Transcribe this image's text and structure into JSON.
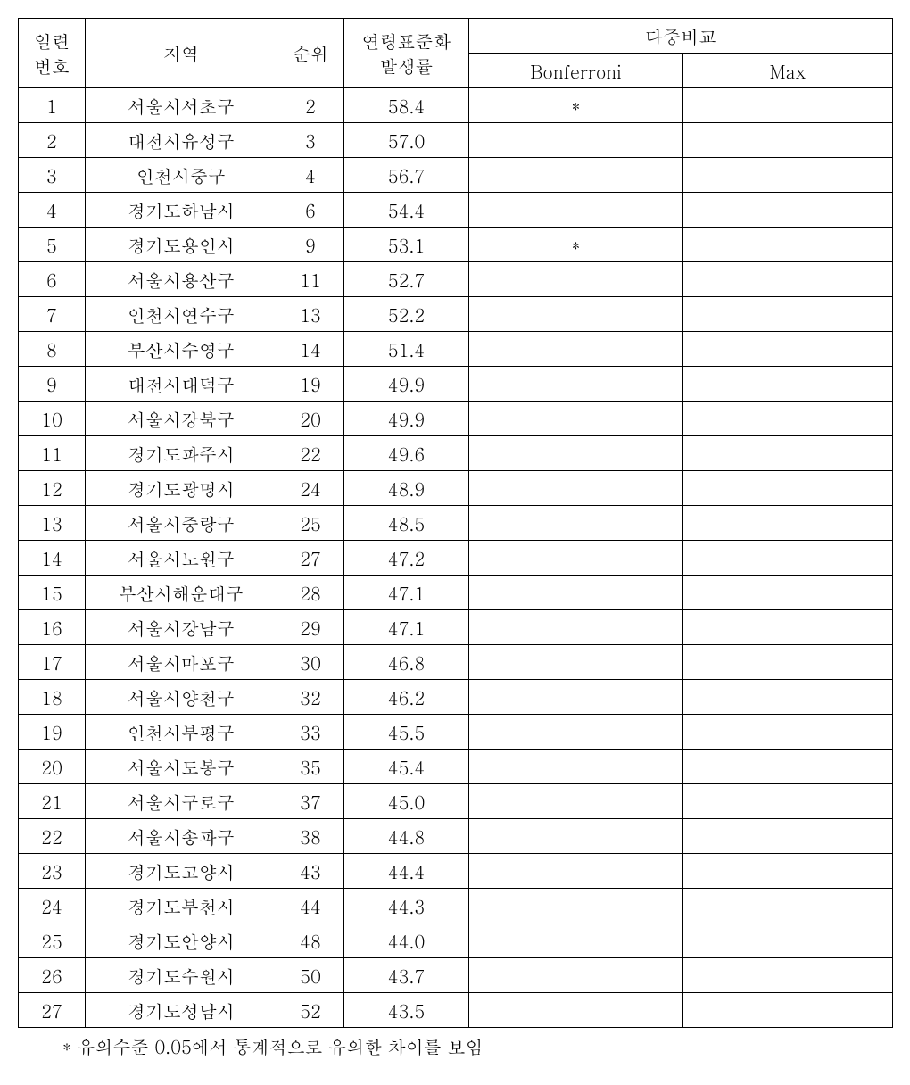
{
  "table": {
    "headers": {
      "seq_line1": "일련",
      "seq_line2": "번호",
      "region": "지역",
      "rank": "순위",
      "rate_line1": "연령표준화",
      "rate_line2": "발생률",
      "comparison": "다중비교",
      "bonferroni": "Bonferroni",
      "max": "Max"
    },
    "rows": [
      {
        "seq": "1",
        "region": "서울시서초구",
        "rank": "2",
        "rate": "58.4",
        "bonf": "*",
        "max": ""
      },
      {
        "seq": "2",
        "region": "대전시유성구",
        "rank": "3",
        "rate": "57.0",
        "bonf": "",
        "max": ""
      },
      {
        "seq": "3",
        "region": "인천시중구",
        "rank": "4",
        "rate": "56.7",
        "bonf": "",
        "max": ""
      },
      {
        "seq": "4",
        "region": "경기도하남시",
        "rank": "6",
        "rate": "54.4",
        "bonf": "",
        "max": ""
      },
      {
        "seq": "5",
        "region": "경기도용인시",
        "rank": "9",
        "rate": "53.1",
        "bonf": "*",
        "max": ""
      },
      {
        "seq": "6",
        "region": "서울시용산구",
        "rank": "11",
        "rate": "52.7",
        "bonf": "",
        "max": ""
      },
      {
        "seq": "7",
        "region": "인천시연수구",
        "rank": "13",
        "rate": "52.2",
        "bonf": "",
        "max": ""
      },
      {
        "seq": "8",
        "region": "부산시수영구",
        "rank": "14",
        "rate": "51.4",
        "bonf": "",
        "max": ""
      },
      {
        "seq": "9",
        "region": "대전시대덕구",
        "rank": "19",
        "rate": "49.9",
        "bonf": "",
        "max": ""
      },
      {
        "seq": "10",
        "region": "서울시강북구",
        "rank": "20",
        "rate": "49.9",
        "bonf": "",
        "max": ""
      },
      {
        "seq": "11",
        "region": "경기도파주시",
        "rank": "22",
        "rate": "49.6",
        "bonf": "",
        "max": ""
      },
      {
        "seq": "12",
        "region": "경기도광명시",
        "rank": "24",
        "rate": "48.9",
        "bonf": "",
        "max": ""
      },
      {
        "seq": "13",
        "region": "서울시중랑구",
        "rank": "25",
        "rate": "48.5",
        "bonf": "",
        "max": ""
      },
      {
        "seq": "14",
        "region": "서울시노원구",
        "rank": "27",
        "rate": "47.2",
        "bonf": "",
        "max": ""
      },
      {
        "seq": "15",
        "region": "부산시해운대구",
        "rank": "28",
        "rate": "47.1",
        "bonf": "",
        "max": ""
      },
      {
        "seq": "16",
        "region": "서울시강남구",
        "rank": "29",
        "rate": "47.1",
        "bonf": "",
        "max": ""
      },
      {
        "seq": "17",
        "region": "서울시마포구",
        "rank": "30",
        "rate": "46.8",
        "bonf": "",
        "max": ""
      },
      {
        "seq": "18",
        "region": "서울시양천구",
        "rank": "32",
        "rate": "46.2",
        "bonf": "",
        "max": ""
      },
      {
        "seq": "19",
        "region": "인천시부평구",
        "rank": "33",
        "rate": "45.5",
        "bonf": "",
        "max": ""
      },
      {
        "seq": "20",
        "region": "서울시도봉구",
        "rank": "35",
        "rate": "45.4",
        "bonf": "",
        "max": ""
      },
      {
        "seq": "21",
        "region": "서울시구로구",
        "rank": "37",
        "rate": "45.0",
        "bonf": "",
        "max": ""
      },
      {
        "seq": "22",
        "region": "서울시송파구",
        "rank": "38",
        "rate": "44.8",
        "bonf": "",
        "max": ""
      },
      {
        "seq": "23",
        "region": "경기도고양시",
        "rank": "43",
        "rate": "44.4",
        "bonf": "",
        "max": ""
      },
      {
        "seq": "24",
        "region": "경기도부천시",
        "rank": "44",
        "rate": "44.3",
        "bonf": "",
        "max": ""
      },
      {
        "seq": "25",
        "region": "경기도안양시",
        "rank": "48",
        "rate": "44.0",
        "bonf": "",
        "max": ""
      },
      {
        "seq": "26",
        "region": "경기도수원시",
        "rank": "50",
        "rate": "43.7",
        "bonf": "",
        "max": ""
      },
      {
        "seq": "27",
        "region": "경기도성남시",
        "rank": "52",
        "rate": "43.5",
        "bonf": "",
        "max": ""
      }
    ],
    "footnote": "* 유의수준 0.05에서 통계적으로 유의한 차이를 보임",
    "column_widths": {
      "seq": 75,
      "region": 215,
      "rank": 75,
      "rate": 140,
      "bonf": 240,
      "max": 235
    },
    "font_size": 20,
    "border_color": "#000000",
    "background_color": "#ffffff"
  }
}
